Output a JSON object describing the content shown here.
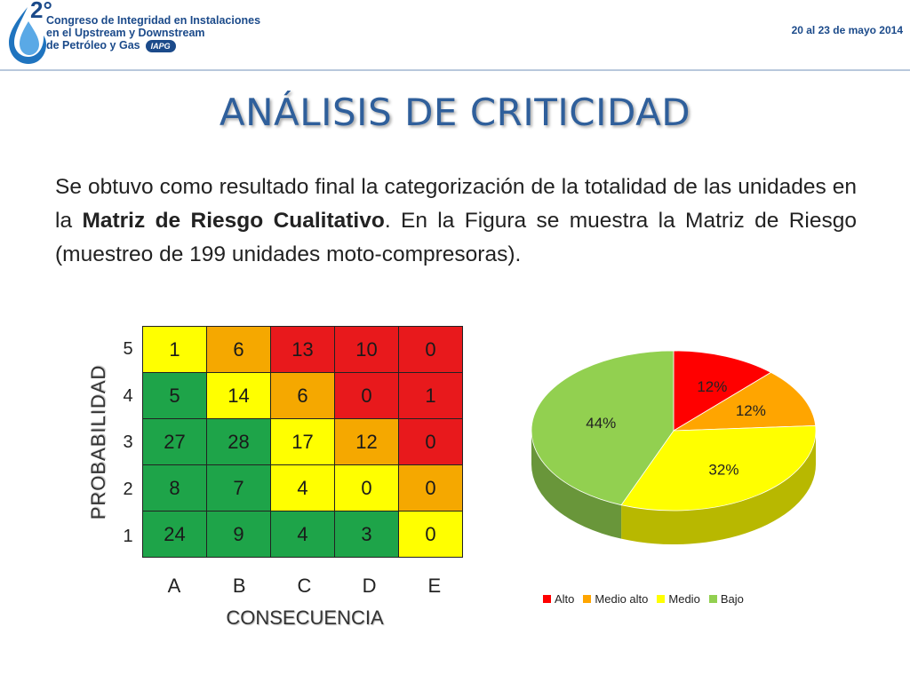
{
  "header": {
    "ordinal": "2°",
    "conference_lines": [
      "Congreso de Integridad en Instalaciones",
      "en el Upstream y Downstream",
      "de Petróleo y Gas"
    ],
    "org_badge": "IAPG",
    "date": "20 al 23 de mayo 2014"
  },
  "title": "ANÁLISIS DE CRITICIDAD",
  "paragraph": {
    "before_bold": "Se obtuvo como resultado final la categorización de la totalidad de las unidades en la ",
    "bold": "Matriz de Riesgo Cualitativo",
    "after_bold": ". En la Figura se muestra la Matriz de Riesgo (muestreo de 199 unidades moto-compresoras)."
  },
  "colors": {
    "red": "#e8191c",
    "orange": "#f5a800",
    "yellow": "#ffff00",
    "green": "#1ea449",
    "light_green": "#92d050"
  },
  "chart_data": [
    {
      "type": "heatmap",
      "xlabel": "CONSECUENCIA",
      "ylabel": "PROBABILIDAD",
      "x_categories": [
        "A",
        "B",
        "C",
        "D",
        "E"
      ],
      "y_categories": [
        "5",
        "4",
        "3",
        "2",
        "1"
      ],
      "values": [
        [
          1,
          6,
          13,
          10,
          0
        ],
        [
          5,
          14,
          6,
          0,
          1
        ],
        [
          27,
          28,
          17,
          12,
          0
        ],
        [
          8,
          7,
          4,
          0,
          0
        ],
        [
          24,
          9,
          4,
          3,
          0
        ]
      ],
      "cell_colors": [
        [
          "yellow",
          "orange",
          "red",
          "red",
          "red"
        ],
        [
          "green",
          "yellow",
          "orange",
          "red",
          "red"
        ],
        [
          "green",
          "green",
          "yellow",
          "orange",
          "red"
        ],
        [
          "green",
          "green",
          "yellow",
          "yellow",
          "orange"
        ],
        [
          "green",
          "green",
          "green",
          "green",
          "yellow"
        ]
      ]
    },
    {
      "type": "pie",
      "categories": [
        "Alto",
        "Medio alto",
        "Medio",
        "Bajo"
      ],
      "values": [
        12,
        12,
        32,
        44
      ],
      "labels": [
        "12%",
        "12%",
        "32%",
        "44%"
      ],
      "colors": [
        "#ff0000",
        "#ffa500",
        "#ffff00",
        "#92d050"
      ],
      "legend": "bottom"
    }
  ]
}
